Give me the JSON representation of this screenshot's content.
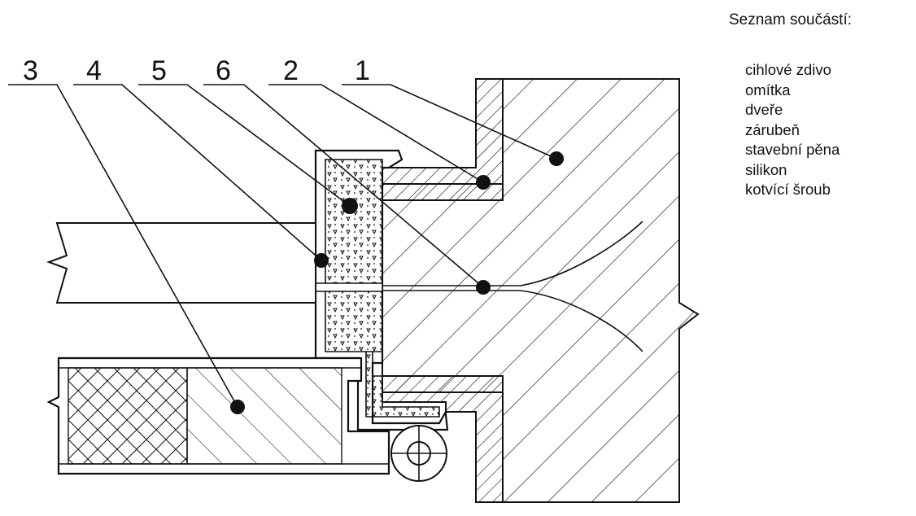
{
  "legend": {
    "title": "Seznam součástí:",
    "items": [
      "cihlové zdivo",
      "omítka",
      "dveře",
      "zárubeň",
      "stavební pěna",
      "silikon",
      "kotvící šroub"
    ]
  },
  "callouts": [
    "3",
    "4",
    "5",
    "6",
    "2",
    "1"
  ],
  "colors": {
    "line": "#111111",
    "background": "#ffffff"
  }
}
